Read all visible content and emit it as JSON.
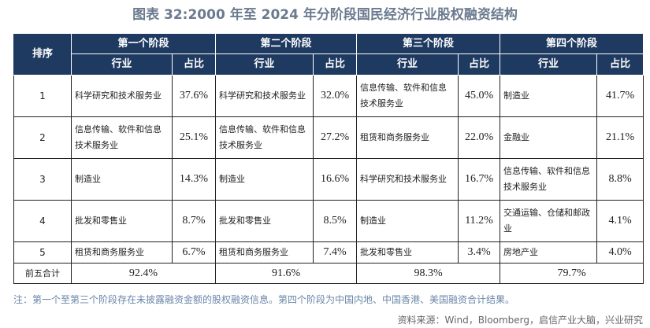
{
  "title": "图表 32:2000 年至 2024 年分阶段国民经济行业股权融资结构",
  "header": {
    "rank": "排序",
    "stages": [
      "第一个阶段",
      "第二个阶段",
      "第三个阶段",
      "第四个阶段"
    ],
    "industry": "行业",
    "share": "占比"
  },
  "rows": [
    {
      "rank": "1",
      "cells": [
        [
          "科学研究和技术服务业",
          "37.6%"
        ],
        [
          "科学研究和技术服务业",
          "32.0%"
        ],
        [
          "信息传输、软件和信息技术服务业",
          "45.0%"
        ],
        [
          "制造业",
          "41.7%"
        ]
      ]
    },
    {
      "rank": "2",
      "cells": [
        [
          "信息传输、软件和信息技术服务业",
          "25.1%"
        ],
        [
          "信息传输、软件和信息技术服务业",
          "27.2%"
        ],
        [
          "租赁和商务服务业",
          "22.0%"
        ],
        [
          "金融业",
          "21.1%"
        ]
      ]
    },
    {
      "rank": "3",
      "cells": [
        [
          "制造业",
          "14.3%"
        ],
        [
          "制造业",
          "16.6%"
        ],
        [
          "科学研究和技术服务业",
          "16.7%"
        ],
        [
          "信息传输、软件和信息技术服务业",
          "8.8%"
        ]
      ]
    },
    {
      "rank": "4",
      "cells": [
        [
          "批发和零售业",
          "8.7%"
        ],
        [
          "批发和零售业",
          "8.5%"
        ],
        [
          "制造业",
          "11.2%"
        ],
        [
          "交通运输、仓储和邮政业",
          "4.1%"
        ]
      ]
    },
    {
      "rank": "5",
      "cells": [
        [
          "租赁和商务服务业",
          "6.7%"
        ],
        [
          "租赁和商务服务业",
          "7.4%"
        ],
        [
          "批发和零售业",
          "3.4%"
        ],
        [
          "房地产业",
          "4.0%"
        ]
      ]
    }
  ],
  "total": {
    "label": "前五合计",
    "values": [
      "92.4%",
      "91.6%",
      "98.3%",
      "79.7%"
    ]
  },
  "note": "注：第一个至第三个阶段存在未披露融资金额的股权融资信息。第四个阶段为中国内地、中国香港、美国融资合计结果。",
  "source": "资料来源：Wind，Bloomberg，启信产业大脑，兴业研究"
}
